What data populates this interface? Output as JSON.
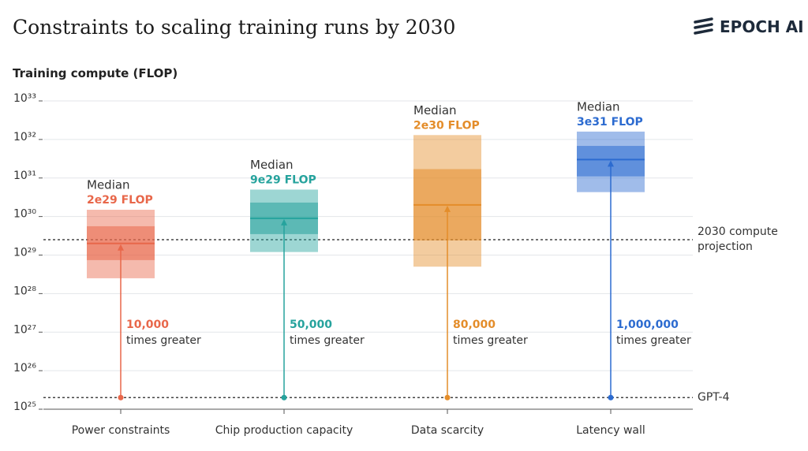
{
  "brand": "EPOCH AI",
  "chart_data": {
    "type": "range",
    "title": "Constraints to scaling training runs by 2030",
    "y_label": "Training compute (FLOP)",
    "log": true,
    "grid": true,
    "ylim": [
      1e+25,
      1e+33
    ],
    "yticks": [
      {
        "value": 1e+25,
        "label": "10²⁵"
      },
      {
        "value": 1e+26,
        "label": "10²⁶"
      },
      {
        "value": 1e+27,
        "label": "10²⁷"
      },
      {
        "value": 1e+28,
        "label": "10²⁸"
      },
      {
        "value": 1e+29,
        "label": "10²⁹"
      },
      {
        "value": 1e+30,
        "label": "10³⁰"
      },
      {
        "value": 1e+31,
        "label": "10³¹"
      },
      {
        "value": 1e+32,
        "label": "10³²"
      },
      {
        "value": 1e+33,
        "label": "10³³"
      }
    ],
    "categories": [
      "Power constraints",
      "Chip production capacity",
      "Data scarcity",
      "Latency wall"
    ],
    "median_text": "Median",
    "multiplier_text": "times greater",
    "references": [
      {
        "label": "GPT-4",
        "value": 2e+25
      },
      {
        "label": "2030 compute projection",
        "value": 2.5e+29
      }
    ],
    "series": [
      {
        "color": "#e8674a",
        "low": 2.5e+28,
        "high": 1.5e+30,
        "inner_low": 7.4e+28,
        "inner_high": 5.6e+29,
        "median": 2e+29,
        "median_label": "2e29 FLOP",
        "multiplier": 10000,
        "multiplier_label": "10,000"
      },
      {
        "color": "#26a39d",
        "low": 1.2e+29,
        "high": 5e+30,
        "inner_low": 3.5e+29,
        "inner_high": 2.3e+30,
        "median": 9e+29,
        "median_label": "9e29 FLOP",
        "multiplier": 50000,
        "multiplier_label": "50,000"
      },
      {
        "color": "#e48d2a",
        "low": 5e+28,
        "high": 1.3e+32,
        "inner_low": 2.4e+29,
        "inner_high": 1.7e+31,
        "median": 2e+30,
        "median_label": "2e30 FLOP",
        "multiplier": 80000,
        "multiplier_label": "80,000"
      },
      {
        "color": "#2c6bd0",
        "low": 4.3e+30,
        "high": 1.6e+32,
        "inner_low": 1.1e+31,
        "inner_high": 6.8e+31,
        "median": 3e+31,
        "median_label": "3e31 FLOP",
        "multiplier": 1000000,
        "multiplier_label": "1,000,000"
      }
    ]
  }
}
